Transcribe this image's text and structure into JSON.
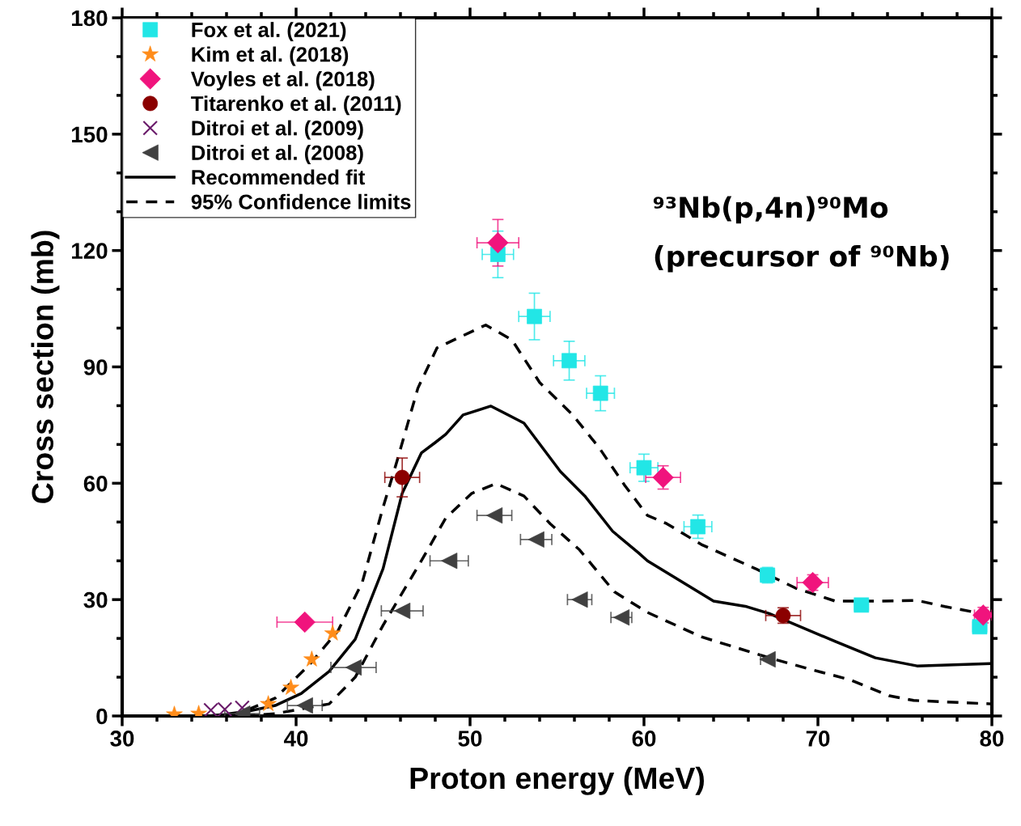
{
  "chart_data": {
    "type": "scatter",
    "xlabel": "Proton energy (MeV)",
    "ylabel": "Cross section (mb)",
    "xlim": [
      30,
      80
    ],
    "ylim": [
      0,
      180
    ],
    "xticks": [
      30,
      40,
      50,
      60,
      70,
      80
    ],
    "yticks": [
      0,
      30,
      60,
      90,
      120,
      150,
      180
    ],
    "grid": false,
    "legend": "top left",
    "annotations": [
      "⁹³Nb(p,4n)⁹⁰Mo",
      "(precursor of ⁹⁰Nb)"
    ],
    "series": [
      {
        "name": "Fox et al. (2021)",
        "marker": "square",
        "color": "#22e6e6",
        "x": [
          51.6,
          53.7,
          55.7,
          57.5,
          60.0,
          63.1,
          67.1,
          72.5,
          79.3
        ],
        "values": [
          119,
          103,
          91.6,
          83.2,
          64,
          48.8,
          36.3,
          28.6,
          23
        ],
        "errors": [
          6,
          6,
          5,
          4.5,
          3.5,
          3,
          2,
          1.5,
          1.5
        ],
        "xerrors": [
          0.9,
          0.9,
          0.9,
          0.8,
          0.8,
          0.8,
          0.4,
          0.4,
          0.4
        ]
      },
      {
        "name": "Kim et al. (2018)",
        "marker": "star",
        "color": "#ff8c1a",
        "x": [
          33.0,
          34.4,
          38.4,
          39.7,
          40.9,
          42.1
        ],
        "values": [
          0.4,
          0.6,
          3.1,
          7.3,
          14.6,
          21.3
        ]
      },
      {
        "name": "Voyles et al. (2018)",
        "marker": "diamond",
        "color": "#f0147d",
        "x": [
          40.5,
          51.6,
          61.1,
          69.7,
          79.5
        ],
        "values": [
          24.2,
          122,
          61.5,
          34.4,
          26
        ],
        "errors": [
          null,
          6,
          3,
          2,
          2
        ],
        "xerrors": [
          1.6,
          1.2,
          1.0,
          0.9,
          0.5
        ]
      },
      {
        "name": "Titarenko et al. (2011)",
        "marker": "circle",
        "color": "#8b0000",
        "x": [
          46.1,
          68.0
        ],
        "values": [
          61.5,
          25.9
        ],
        "errors": [
          5,
          2
        ],
        "xerrors": [
          1.0,
          1.0
        ]
      },
      {
        "name": "Ditroi et al. (2009)",
        "marker": "cross",
        "color": "#6a1b6a",
        "x": [
          35.1,
          35.9,
          36.9
        ],
        "values": [
          1.5,
          1.7,
          2.1
        ]
      },
      {
        "name": "Ditroi et al. (2008)",
        "marker": "triangle",
        "color": "#404040",
        "x": [
          36.9,
          40.5,
          43.3,
          46.1,
          48.8,
          51.4,
          53.8,
          56.3,
          58.7,
          67.1
        ],
        "values": [
          0.6,
          2.7,
          12.5,
          27.1,
          40,
          51.7,
          45.5,
          30,
          25.4,
          14.6
        ],
        "xerrors": [
          1.0,
          1.0,
          1.3,
          1.2,
          1.1,
          1.0,
          0.9,
          0.7,
          0.6,
          0.4
        ]
      },
      {
        "name": "Recommended fit",
        "type": "line",
        "marker": "none",
        "line_style": "solid",
        "color": "#000000",
        "x": [
          35.0,
          36.6,
          38.8,
          40.3,
          41.9,
          43.4,
          45.0,
          46.1,
          47.2,
          48.0,
          48.6,
          49.6,
          51.2,
          53.1,
          55.2,
          56.6,
          58.2,
          59.7,
          60.2,
          64.0,
          65.9,
          67.2,
          71.0,
          73.3,
          75.7,
          79.9,
          80.0
        ],
        "values": [
          0,
          0.6,
          2.7,
          5.8,
          11.5,
          19.8,
          38,
          57.4,
          67.8,
          70.5,
          72.6,
          77.6,
          79.9,
          75.5,
          63,
          56.7,
          47.6,
          42,
          40,
          29.6,
          28.2,
          26.4,
          19.2,
          15,
          12.9,
          13.5,
          13.5
        ]
      },
      {
        "name": "95% Confidence limits",
        "type": "line",
        "marker": "none",
        "line_style": "dashed",
        "color": "#000000",
        "x": [
          35.0,
          36.9,
          38.8,
          40.7,
          42.4,
          43.8,
          45.0,
          45.8,
          47.0,
          48.1,
          50.9,
          52.4,
          54.0,
          55.9,
          57.4,
          58.9,
          60.2,
          61.3,
          63.3,
          66.4,
          68.7,
          71.0,
          73.3,
          75.7,
          77.3,
          79.9
        ],
        "values": [
          0,
          1,
          4.6,
          12.9,
          21.9,
          34.4,
          53.8,
          65.7,
          84.5,
          94.9,
          100.8,
          97,
          86,
          77.6,
          69.3,
          59.4,
          51.7,
          49.6,
          44.2,
          38,
          33,
          29.6,
          29.6,
          29.8,
          28.2,
          26
        ]
      },
      {
        "type": "line",
        "marker": "none",
        "line_style": "dashed",
        "color": "#000000",
        "x": [
          37.0,
          38.8,
          41.9,
          43.4,
          45.0,
          47.2,
          48.6,
          50.1,
          51.5,
          53.1,
          54.6,
          56.3,
          58.3,
          60.2,
          63.3,
          67.2,
          69.5,
          71.8,
          74.1,
          75.5,
          80.0
        ],
        "values": [
          0,
          0.6,
          3.1,
          10,
          23.4,
          40,
          51,
          57.4,
          59.9,
          56.7,
          49.6,
          42.8,
          32,
          26.7,
          20.4,
          15,
          12.1,
          9.4,
          5.2,
          4,
          3.1
        ]
      }
    ]
  }
}
